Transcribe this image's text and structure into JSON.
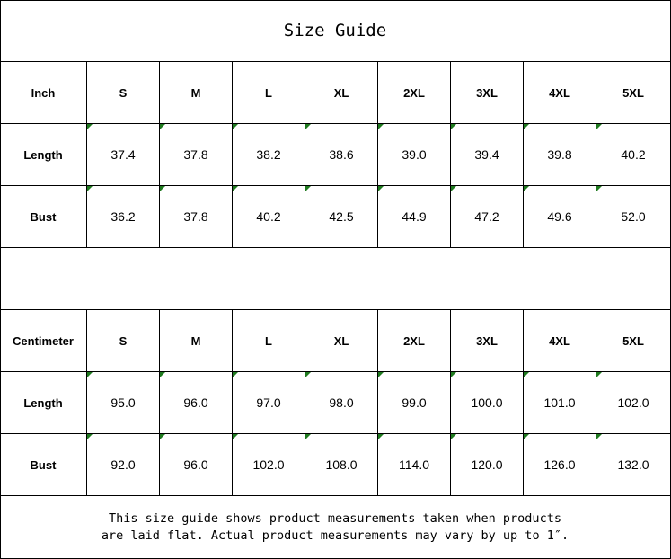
{
  "title": "Size Guide",
  "indicator_color": "#1f7a1f",
  "tables": [
    {
      "unit_label": "Inch",
      "sizes": [
        "S",
        "M",
        "L",
        "XL",
        "2XL",
        "3XL",
        "4XL",
        "5XL"
      ],
      "rows": [
        {
          "label": "Length",
          "values": [
            "37.4",
            "37.8",
            "38.2",
            "38.6",
            "39.0",
            "39.4",
            "39.8",
            "40.2"
          ]
        },
        {
          "label": "Bust",
          "values": [
            "36.2",
            "37.8",
            "40.2",
            "42.5",
            "44.9",
            "47.2",
            "49.6",
            "52.0"
          ]
        }
      ]
    },
    {
      "unit_label": "Centimeter",
      "sizes": [
        "S",
        "M",
        "L",
        "XL",
        "2XL",
        "3XL",
        "4XL",
        "5XL"
      ],
      "rows": [
        {
          "label": "Length",
          "values": [
            "95.0",
            "96.0",
            "97.0",
            "98.0",
            "99.0",
            "100.0",
            "101.0",
            "102.0"
          ]
        },
        {
          "label": "Bust",
          "values": [
            "92.0",
            "96.0",
            "102.0",
            "108.0",
            "114.0",
            "120.0",
            "126.0",
            "132.0"
          ]
        }
      ]
    }
  ],
  "note_lines": [
    "This size guide shows product measurements taken when products",
    "are laid flat. Actual product measurements may vary by up to 1″."
  ]
}
